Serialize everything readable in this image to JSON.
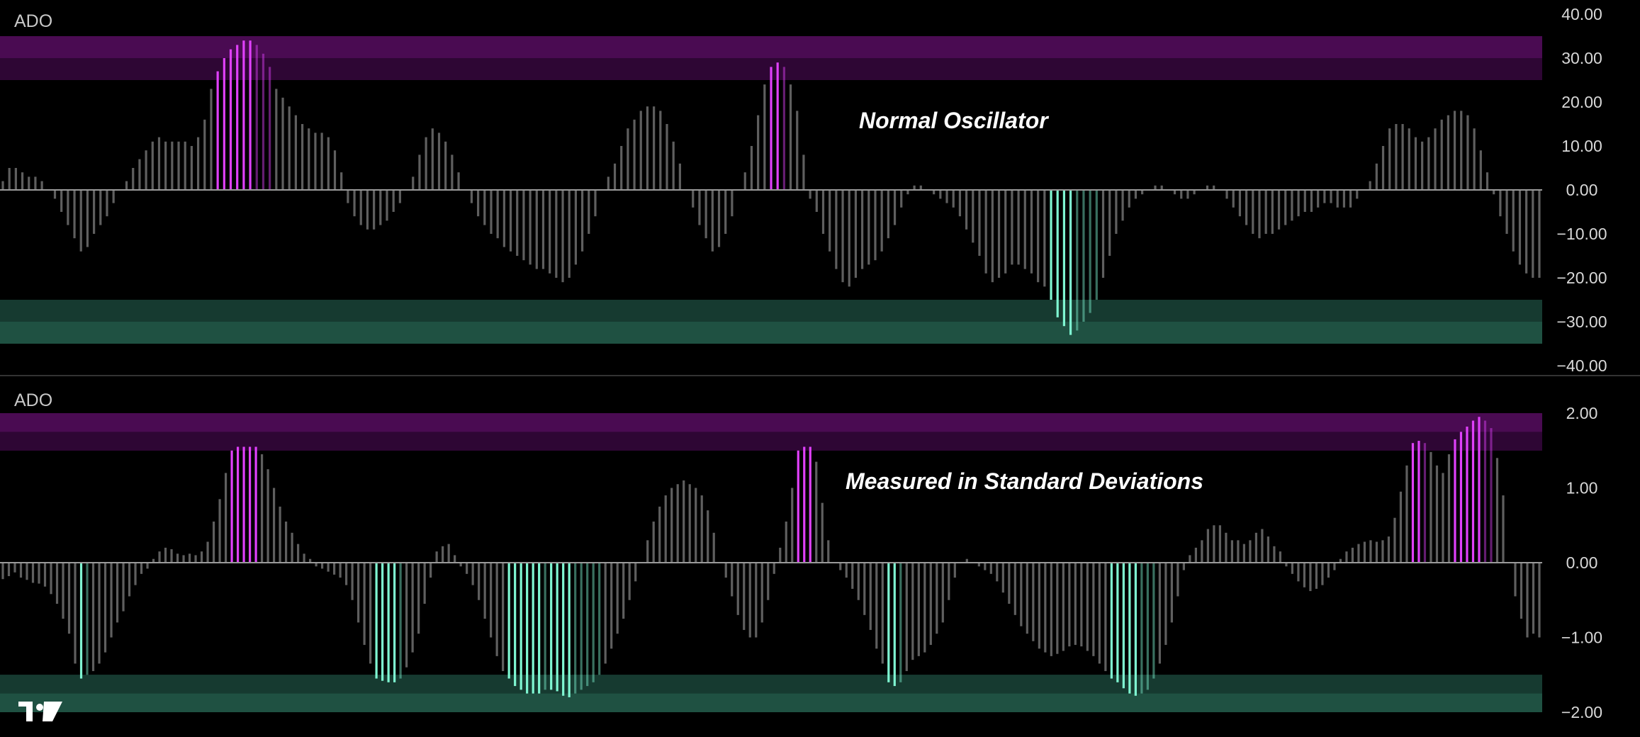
{
  "colors": {
    "background": "#000000",
    "neutral_bar": "#5f5f5f",
    "overbought_bar": "#e040fb",
    "oversold_bar": "#7ff7d2",
    "overbought_zone_outer": "#4a0b52",
    "overbought_zone_inner": "#2e0634",
    "oversold_zone_outer": "#1f5142",
    "oversold_zone_inner": "#163a30",
    "zero_line": "#9a9a9a",
    "separator": "#333333",
    "text": "#d8d8d8"
  },
  "watermark_icon": "tradingview-logo-icon",
  "chart_data": [
    {
      "type": "bar",
      "title": "ADO",
      "annotation": "Normal Oscillator",
      "y_ticks": [
        "40.00",
        "30.00",
        "20.00",
        "10.00",
        "0.00",
        "−10.00",
        "−20.00",
        "−30.00",
        "−40.00"
      ],
      "ylim": [
        -40,
        40
      ],
      "overbought_zone": {
        "outer": [
          25,
          35
        ],
        "inner": [
          25,
          30
        ]
      },
      "oversold_zone": {
        "outer": [
          -35,
          -25
        ],
        "inner": [
          -30,
          -25
        ]
      },
      "values": [
        2,
        5,
        5,
        4,
        3,
        3,
        2,
        0,
        -2,
        -5,
        -8,
        -11,
        -14,
        -13,
        -10,
        -8,
        -6,
        -3,
        0,
        2,
        5,
        7,
        9,
        11,
        12,
        11,
        11,
        11,
        11,
        10,
        12,
        16,
        23,
        27,
        30,
        32,
        33,
        34,
        34,
        33,
        31,
        28,
        23,
        21,
        19,
        17,
        15,
        14,
        13,
        13,
        12,
        9,
        4,
        -3,
        -6,
        -8,
        -9,
        -9,
        -8,
        -7,
        -5,
        -3,
        0,
        3,
        8,
        12,
        14,
        13,
        11,
        8,
        4,
        0,
        -3,
        -6,
        -8,
        -10,
        -11,
        -13,
        -14,
        -15,
        -16,
        -17,
        -18,
        -18,
        -19,
        -20,
        -21,
        -20,
        -17,
        -14,
        -10,
        -6,
        0,
        3,
        6,
        10,
        14,
        16,
        18,
        19,
        19,
        18,
        15,
        11,
        6,
        0,
        -4,
        -8,
        -11,
        -14,
        -13,
        -10,
        -6,
        0,
        4,
        10,
        17,
        24,
        28,
        29,
        28,
        24,
        18,
        8,
        -2,
        -5,
        -10,
        -14,
        -18,
        -21,
        -22,
        -20,
        -18,
        -17,
        -16,
        -14,
        -11,
        -8,
        -4,
        -1,
        1,
        1,
        0,
        -1,
        -2,
        -3,
        -4,
        -6,
        -9,
        -12,
        -15,
        -19,
        -21,
        -20,
        -19,
        -17,
        -17,
        -18,
        -19,
        -21,
        -22,
        -25,
        -29,
        -31,
        -33,
        -32,
        -30,
        -28,
        -25,
        -20,
        -15,
        -10,
        -7,
        -4,
        -2,
        -1,
        0,
        1,
        1,
        0,
        -1,
        -2,
        -2,
        -1,
        0,
        1,
        1,
        0,
        -2,
        -4,
        -6,
        -8,
        -10,
        -11,
        -10,
        -10,
        -9,
        -8,
        -7,
        -6,
        -5,
        -5,
        -4,
        -3,
        -3,
        -4,
        -4,
        -4,
        -2,
        0,
        2,
        6,
        10,
        14,
        15,
        15,
        14,
        12,
        11,
        12,
        14,
        16,
        17,
        18,
        18,
        17,
        14,
        9,
        4,
        -1,
        -6,
        -10,
        -14,
        -17,
        -19,
        -20,
        -20
      ]
    },
    {
      "type": "bar",
      "title": "ADO",
      "annotation": "Measured in Standard Deviations",
      "y_ticks": [
        "2.00",
        "1.00",
        "0.00",
        "−1.00",
        "−2.00"
      ],
      "ylim": [
        -2.1,
        2.1
      ],
      "overbought_zone": {
        "outer": [
          1.5,
          2.0
        ],
        "inner": [
          1.5,
          1.75
        ]
      },
      "oversold_zone": {
        "outer": [
          -2.0,
          -1.5
        ],
        "inner": [
          -1.75,
          -1.5
        ]
      },
      "values": [
        -0.22,
        -0.18,
        -0.13,
        -0.2,
        -0.23,
        -0.27,
        -0.28,
        -0.32,
        -0.42,
        -0.55,
        -0.75,
        -0.95,
        -1.35,
        -1.55,
        -1.5,
        -1.45,
        -1.35,
        -1.2,
        -1.0,
        -0.8,
        -0.65,
        -0.45,
        -0.3,
        -0.15,
        -0.08,
        0.05,
        0.15,
        0.2,
        0.18,
        0.12,
        0.1,
        0.12,
        0.1,
        0.15,
        0.28,
        0.55,
        0.85,
        1.2,
        1.5,
        1.55,
        1.55,
        1.55,
        1.55,
        1.45,
        1.25,
        1.0,
        0.75,
        0.55,
        0.4,
        0.25,
        0.12,
        0.05,
        -0.05,
        -0.08,
        -0.12,
        -0.16,
        -0.2,
        -0.3,
        -0.5,
        -0.8,
        -1.1,
        -1.35,
        -1.55,
        -1.58,
        -1.6,
        -1.6,
        -1.55,
        -1.4,
        -1.2,
        -0.95,
        -0.55,
        -0.2,
        0.15,
        0.22,
        0.25,
        0.1,
        -0.05,
        -0.15,
        -0.3,
        -0.5,
        -0.75,
        -1.0,
        -1.25,
        -1.45,
        -1.55,
        -1.65,
        -1.7,
        -1.75,
        -1.75,
        -1.75,
        -1.7,
        -1.7,
        -1.72,
        -1.78,
        -1.8,
        -1.75,
        -1.7,
        -1.65,
        -1.6,
        -1.5,
        -1.35,
        -1.15,
        -0.95,
        -0.75,
        -0.5,
        -0.25,
        0.0,
        0.3,
        0.55,
        0.75,
        0.9,
        1.0,
        1.05,
        1.1,
        1.05,
        1.0,
        0.9,
        0.7,
        0.4,
        0.0,
        -0.2,
        -0.45,
        -0.7,
        -0.9,
        -1.0,
        -1.0,
        -0.8,
        -0.5,
        -0.15,
        0.2,
        0.55,
        1.0,
        1.5,
        1.55,
        1.55,
        1.35,
        0.8,
        0.3,
        0.0,
        -0.1,
        -0.2,
        -0.35,
        -0.5,
        -0.7,
        -0.9,
        -1.15,
        -1.35,
        -1.6,
        -1.65,
        -1.6,
        -1.45,
        -1.3,
        -1.25,
        -1.2,
        -1.1,
        -0.95,
        -0.8,
        -0.5,
        -0.2,
        0.0,
        0.05,
        0.0,
        -0.05,
        -0.1,
        -0.15,
        -0.25,
        -0.4,
        -0.55,
        -0.7,
        -0.85,
        -0.95,
        -1.05,
        -1.15,
        -1.2,
        -1.25,
        -1.22,
        -1.18,
        -1.12,
        -1.1,
        -1.12,
        -1.18,
        -1.25,
        -1.35,
        -1.45,
        -1.55,
        -1.6,
        -1.68,
        -1.75,
        -1.78,
        -1.75,
        -1.7,
        -1.55,
        -1.35,
        -1.1,
        -0.8,
        -0.45,
        -0.1,
        0.1,
        0.2,
        0.3,
        0.45,
        0.5,
        0.5,
        0.4,
        0.3,
        0.3,
        0.25,
        0.3,
        0.4,
        0.45,
        0.35,
        0.22,
        0.15,
        -0.05,
        -0.15,
        -0.25,
        -0.33,
        -0.38,
        -0.35,
        -0.3,
        -0.2,
        -0.1,
        0.05,
        0.15,
        0.2,
        0.25,
        0.28,
        0.3,
        0.28,
        0.3,
        0.35,
        0.6,
        0.95,
        1.3,
        1.6,
        1.63,
        1.6,
        1.48,
        1.3,
        1.2,
        1.45,
        1.65,
        1.75,
        1.82,
        1.9,
        1.95,
        1.9,
        1.8,
        1.4,
        0.9,
        0.0,
        -0.45,
        -0.75,
        -1.0,
        -0.95,
        -1.0
      ]
    }
  ]
}
